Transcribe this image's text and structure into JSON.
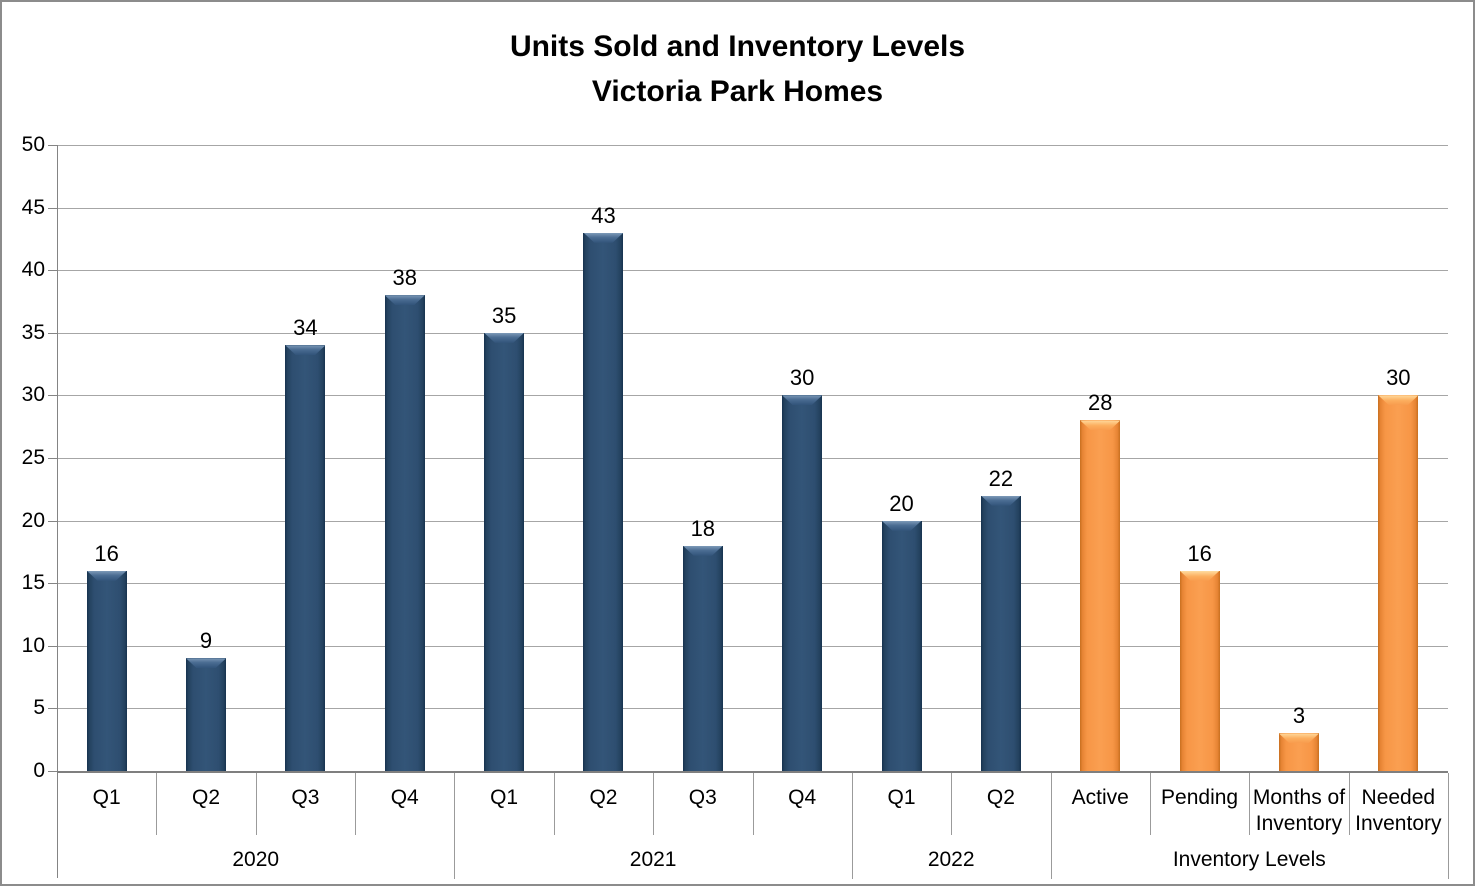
{
  "chart": {
    "title_line1": "Units Sold and Inventory Levels",
    "title_line2": "Victoria Park Homes"
  },
  "chart_data": {
    "type": "bar",
    "title": "Units Sold and Inventory Levels",
    "subtitle": "Victoria Park Homes",
    "xlabel": "",
    "ylabel": "",
    "ylim": [
      0,
      50
    ],
    "ytick_interval": 5,
    "yticks": [
      0,
      5,
      10,
      15,
      20,
      25,
      30,
      35,
      40,
      45,
      50
    ],
    "grid": true,
    "legend_position": "none",
    "data_labels": true,
    "series_colors": {
      "units": "#2E4E70",
      "inventory": "#F79646"
    },
    "groups": [
      {
        "label": "2020",
        "series_key": "units",
        "categories": [
          "Q1",
          "Q2",
          "Q3",
          "Q4"
        ],
        "values": [
          16,
          9,
          34,
          38
        ]
      },
      {
        "label": "2021",
        "series_key": "units",
        "categories": [
          "Q1",
          "Q2",
          "Q3",
          "Q4"
        ],
        "values": [
          35,
          43,
          18,
          30
        ]
      },
      {
        "label": "2022",
        "series_key": "units",
        "categories": [
          "Q1",
          "Q2"
        ],
        "values": [
          20,
          22
        ]
      },
      {
        "label": "Inventory Levels",
        "series_key": "inventory",
        "categories": [
          "Active",
          "Pending",
          "Months of Inventory",
          "Needed Inventory"
        ],
        "values": [
          28,
          16,
          3,
          30
        ]
      }
    ]
  }
}
